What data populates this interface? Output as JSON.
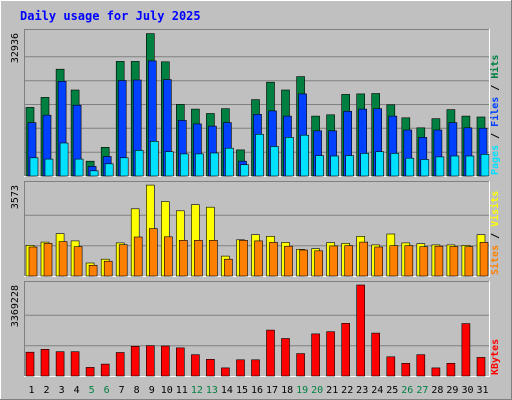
{
  "title": "Daily usage for July 2025",
  "colors": {
    "background": "#c0c0c0",
    "panel": "#c0c0c0",
    "grid": "#808080",
    "title": "#0000ff",
    "weekday_label": "#000000",
    "weekend_label": "#008040",
    "hits": "#008040",
    "files": "#0040ff",
    "pages": "#00e0ff",
    "visits": "#ffff00",
    "sites": "#ff8000",
    "kbytes": "#ff0000"
  },
  "chart_data": [
    {
      "type": "bar",
      "name": "hits-files-pages",
      "categories": [
        "1",
        "2",
        "3",
        "4",
        "5",
        "6",
        "7",
        "8",
        "9",
        "10",
        "11",
        "12",
        "13",
        "14",
        "15",
        "16",
        "17",
        "18",
        "19",
        "20",
        "21",
        "22",
        "23",
        "24",
        "25",
        "26",
        "27",
        "28",
        "29",
        "30",
        "31"
      ],
      "weekend_days": [
        5,
        6,
        12,
        13,
        19,
        20,
        26,
        27
      ],
      "ymax_label": "32936",
      "ylim": [
        0,
        32936
      ],
      "axis_label": [
        {
          "text": "Pages",
          "color": "#00e0ff"
        },
        {
          "text": " / ",
          "color": "#000000"
        },
        {
          "text": "Files",
          "color": "#0040ff"
        },
        {
          "text": " / ",
          "color": "#000000"
        },
        {
          "text": "Hits",
          "color": "#008040"
        }
      ],
      "series": [
        {
          "name": "Hits",
          "color": "#008040",
          "values": [
            15800,
            18100,
            24600,
            19800,
            3400,
            6600,
            26400,
            26400,
            32800,
            26300,
            16500,
            15400,
            14400,
            15500,
            6000,
            17600,
            21600,
            19800,
            22900,
            13800,
            14100,
            18800,
            18900,
            19000,
            16400,
            13400,
            11100,
            13200,
            15300,
            13800,
            13600
          ]
        },
        {
          "name": "Files",
          "color": "#0040ff",
          "values": [
            12300,
            14000,
            21800,
            16300,
            2200,
            4500,
            22000,
            22100,
            26500,
            22200,
            12800,
            12000,
            11500,
            12300,
            3400,
            14200,
            15000,
            13800,
            18900,
            10400,
            10400,
            14900,
            15400,
            15500,
            13800,
            10600,
            8900,
            10600,
            12300,
            11100,
            11000
          ]
        },
        {
          "name": "Pages",
          "color": "#00e0ff",
          "values": [
            4200,
            3900,
            7600,
            3900,
            1200,
            2800,
            4200,
            5900,
            8000,
            5600,
            5100,
            5100,
            5300,
            6400,
            2600,
            9600,
            6800,
            8900,
            9400,
            4700,
            4600,
            4700,
            5200,
            5600,
            5200,
            4100,
            3800,
            4400,
            4600,
            4600,
            5000
          ]
        }
      ]
    },
    {
      "type": "bar",
      "name": "visits-sites",
      "categories": [
        "1",
        "2",
        "3",
        "4",
        "5",
        "6",
        "7",
        "8",
        "9",
        "10",
        "11",
        "12",
        "13",
        "14",
        "15",
        "16",
        "17",
        "18",
        "19",
        "20",
        "21",
        "22",
        "23",
        "24",
        "25",
        "26",
        "27",
        "28",
        "29",
        "30",
        "31"
      ],
      "ymax_label": "3573",
      "ylim": [
        0,
        3573
      ],
      "axis_label": [
        {
          "text": "Sites",
          "color": "#ff8000"
        },
        {
          "text": " / ",
          "color": "#000000"
        },
        {
          "text": "Visits",
          "color": "#ffff00"
        }
      ],
      "series": [
        {
          "name": "Visits",
          "color": "#ffff00",
          "values": [
            1200,
            1330,
            1660,
            1380,
            510,
            660,
            1300,
            2640,
            3570,
            2920,
            2560,
            2800,
            2700,
            780,
            1420,
            1620,
            1560,
            1320,
            1050,
            1070,
            1310,
            1280,
            1560,
            1220,
            1650,
            1300,
            1270,
            1220,
            1220,
            1200,
            1620
          ]
        },
        {
          "name": "Sites",
          "color": "#ff8000",
          "values": [
            1140,
            1280,
            1350,
            1150,
            420,
            580,
            1230,
            1530,
            1860,
            1540,
            1400,
            1400,
            1400,
            660,
            1400,
            1380,
            1320,
            1170,
            1020,
            990,
            1180,
            1190,
            1330,
            1140,
            1190,
            1190,
            1150,
            1170,
            1160,
            1150,
            1320
          ]
        }
      ]
    },
    {
      "type": "bar",
      "name": "kbytes",
      "categories": [
        "1",
        "2",
        "3",
        "4",
        "5",
        "6",
        "7",
        "8",
        "9",
        "10",
        "11",
        "12",
        "13",
        "14",
        "15",
        "16",
        "17",
        "18",
        "19",
        "20",
        "21",
        "22",
        "23",
        "24",
        "25",
        "26",
        "27",
        "28",
        "29",
        "30",
        "31"
      ],
      "ymax_label": "3369228",
      "ylim": [
        0,
        3369228
      ],
      "axis_label": [
        {
          "text": "KBytes",
          "color": "#ff0000"
        }
      ],
      "series": [
        {
          "name": "KBytes",
          "color": "#ff0000",
          "values": [
            880000,
            990000,
            900000,
            900000,
            320000,
            440000,
            870000,
            1100000,
            1120000,
            1110000,
            1040000,
            790000,
            620000,
            300000,
            600000,
            600000,
            1700000,
            1390000,
            830000,
            1560000,
            1640000,
            1950000,
            3369228,
            1590000,
            710000,
            470000,
            790000,
            300000,
            470000,
            1940000,
            690000
          ]
        }
      ]
    }
  ]
}
